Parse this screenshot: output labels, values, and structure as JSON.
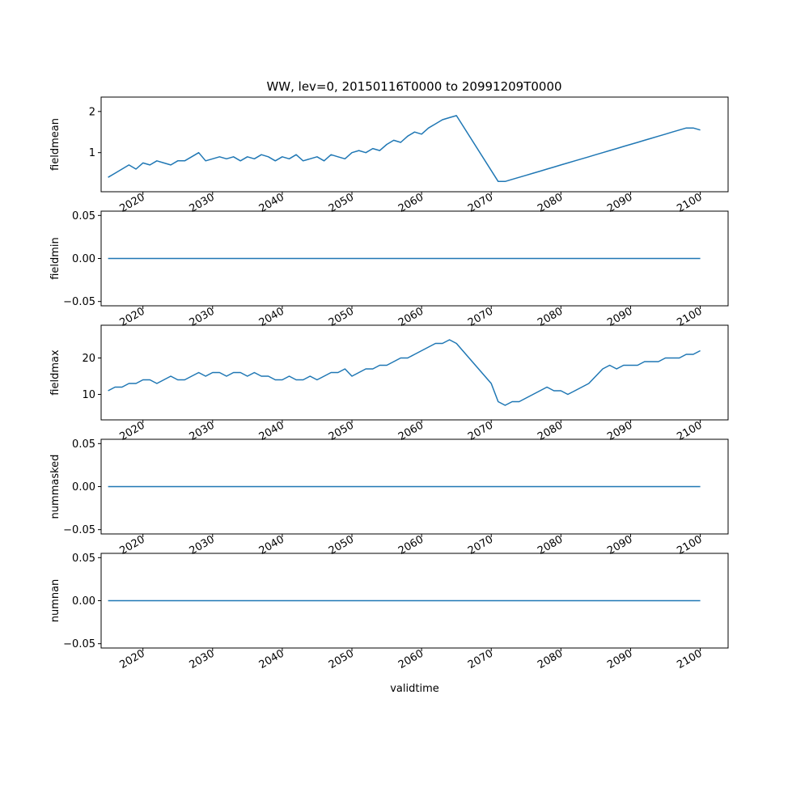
{
  "figure": {
    "title": "WW, lev=0, 20150116T0000 to 20991209T0000"
  },
  "colors": {
    "line": "#1f77b4",
    "axis": "#000000",
    "background": "#ffffff"
  },
  "chart_data": [
    {
      "type": "line",
      "title": "WW, lev=0, 20150116T0000 to 20991209T0000",
      "ylabel": "fieldmean",
      "xlabel": "",
      "xlim": [
        2014.0,
        2104.0
      ],
      "ylim": [
        0.05,
        2.35
      ],
      "yticks": [
        1,
        2
      ],
      "ytick_labels": [
        "1",
        "2"
      ],
      "xticks": [
        2020,
        2030,
        2040,
        2050,
        2060,
        2070,
        2080,
        2090,
        2100
      ],
      "xtick_labels": [
        "2020",
        "2030",
        "2040",
        "2050",
        "2060",
        "2070",
        "2080",
        "2090",
        "2100"
      ],
      "grid": false,
      "series": [
        {
          "name": "fieldmean",
          "x": [
            2015,
            2016,
            2017,
            2018,
            2019,
            2020,
            2021,
            2022,
            2023,
            2024,
            2025,
            2026,
            2027,
            2028,
            2029,
            2030,
            2031,
            2032,
            2033,
            2034,
            2035,
            2036,
            2037,
            2038,
            2039,
            2040,
            2041,
            2042,
            2043,
            2044,
            2045,
            2046,
            2047,
            2048,
            2049,
            2050,
            2051,
            2052,
            2053,
            2054,
            2055,
            2056,
            2057,
            2058,
            2059,
            2060,
            2061,
            2062,
            2063,
            2064,
            2065,
            2071,
            2072,
            2073,
            2074,
            2075,
            2076,
            2077,
            2078,
            2079,
            2080,
            2081,
            2082,
            2083,
            2084,
            2085,
            2086,
            2087,
            2088,
            2089,
            2090,
            2091,
            2092,
            2093,
            2094,
            2095,
            2096,
            2097,
            2098,
            2099,
            2100
          ],
          "values": [
            0.4,
            0.5,
            0.6,
            0.7,
            0.6,
            0.75,
            0.7,
            0.8,
            0.75,
            0.7,
            0.8,
            0.8,
            0.9,
            1.0,
            0.8,
            0.85,
            0.9,
            0.85,
            0.9,
            0.8,
            0.9,
            0.85,
            0.95,
            0.9,
            0.8,
            0.9,
            0.85,
            0.95,
            0.8,
            0.85,
            0.9,
            0.8,
            0.95,
            0.9,
            0.85,
            1.0,
            1.05,
            1.0,
            1.1,
            1.05,
            1.2,
            1.3,
            1.25,
            1.4,
            1.5,
            1.45,
            1.6,
            1.7,
            1.8,
            1.85,
            1.9,
            0.3,
            0.3,
            0.35,
            0.4,
            0.45,
            0.5,
            0.55,
            0.6,
            0.65,
            0.7,
            0.75,
            0.8,
            0.85,
            0.9,
            0.95,
            1.0,
            1.05,
            1.1,
            1.15,
            1.2,
            1.25,
            1.3,
            1.35,
            1.4,
            1.45,
            1.5,
            1.55,
            1.6,
            1.6,
            1.55
          ]
        }
      ]
    },
    {
      "type": "line",
      "title": "",
      "ylabel": "fieldmin",
      "xlabel": "",
      "xlim": [
        2014.0,
        2104.0
      ],
      "ylim": [
        -0.055,
        0.055
      ],
      "yticks": [
        -0.05,
        0.0,
        0.05
      ],
      "ytick_labels": [
        "−0.05",
        "0.00",
        "0.05"
      ],
      "xticks": [
        2020,
        2030,
        2040,
        2050,
        2060,
        2070,
        2080,
        2090,
        2100
      ],
      "xtick_labels": [
        "2020",
        "2030",
        "2040",
        "2050",
        "2060",
        "2070",
        "2080",
        "2090",
        "2100"
      ],
      "grid": false,
      "series": [
        {
          "name": "fieldmin",
          "x": [
            2015,
            2100
          ],
          "values": [
            0,
            0
          ]
        }
      ]
    },
    {
      "type": "line",
      "title": "",
      "ylabel": "fieldmax",
      "xlabel": "",
      "xlim": [
        2014.0,
        2104.0
      ],
      "ylim": [
        3.0,
        29.0
      ],
      "yticks": [
        10,
        20
      ],
      "ytick_labels": [
        "10",
        "20"
      ],
      "xticks": [
        2020,
        2030,
        2040,
        2050,
        2060,
        2070,
        2080,
        2090,
        2100
      ],
      "xtick_labels": [
        "2020",
        "2030",
        "2040",
        "2050",
        "2060",
        "2070",
        "2080",
        "2090",
        "2100"
      ],
      "grid": false,
      "series": [
        {
          "name": "fieldmax",
          "x": [
            2015,
            2016,
            2017,
            2018,
            2019,
            2020,
            2021,
            2022,
            2023,
            2024,
            2025,
            2026,
            2027,
            2028,
            2029,
            2030,
            2031,
            2032,
            2033,
            2034,
            2035,
            2036,
            2037,
            2038,
            2039,
            2040,
            2041,
            2042,
            2043,
            2044,
            2045,
            2046,
            2047,
            2048,
            2049,
            2050,
            2051,
            2052,
            2053,
            2054,
            2055,
            2056,
            2057,
            2058,
            2059,
            2060,
            2061,
            2062,
            2063,
            2064,
            2065,
            2070,
            2071,
            2072,
            2073,
            2074,
            2075,
            2076,
            2077,
            2078,
            2079,
            2080,
            2081,
            2082,
            2083,
            2084,
            2085,
            2086,
            2087,
            2088,
            2089,
            2090,
            2091,
            2092,
            2093,
            2094,
            2095,
            2096,
            2097,
            2098,
            2099,
            2100
          ],
          "values": [
            11,
            12,
            12,
            13,
            13,
            14,
            14,
            13,
            14,
            15,
            14,
            14,
            15,
            16,
            15,
            16,
            16,
            15,
            16,
            16,
            15,
            16,
            15,
            15,
            14,
            14,
            15,
            14,
            14,
            15,
            14,
            15,
            16,
            16,
            17,
            15,
            16,
            17,
            17,
            18,
            18,
            19,
            20,
            20,
            21,
            22,
            23,
            24,
            24,
            25,
            24,
            13,
            8,
            7,
            8,
            8,
            9,
            10,
            11,
            12,
            11,
            11,
            10,
            11,
            12,
            13,
            15,
            17,
            18,
            17,
            18,
            18,
            18,
            19,
            19,
            19,
            20,
            20,
            20,
            21,
            21,
            22
          ]
        }
      ]
    },
    {
      "type": "line",
      "title": "",
      "ylabel": "nummasked",
      "xlabel": "",
      "xlim": [
        2014.0,
        2104.0
      ],
      "ylim": [
        -0.055,
        0.055
      ],
      "yticks": [
        -0.05,
        0.0,
        0.05
      ],
      "ytick_labels": [
        "−0.05",
        "0.00",
        "0.05"
      ],
      "xticks": [
        2020,
        2030,
        2040,
        2050,
        2060,
        2070,
        2080,
        2090,
        2100
      ],
      "xtick_labels": [
        "2020",
        "2030",
        "2040",
        "2050",
        "2060",
        "2070",
        "2080",
        "2090",
        "2100"
      ],
      "grid": false,
      "series": [
        {
          "name": "nummasked",
          "x": [
            2015,
            2100
          ],
          "values": [
            0,
            0
          ]
        }
      ]
    },
    {
      "type": "line",
      "title": "",
      "ylabel": "numnan",
      "xlabel": "validtime",
      "xlim": [
        2014.0,
        2104.0
      ],
      "ylim": [
        -0.055,
        0.055
      ],
      "yticks": [
        -0.05,
        0.0,
        0.05
      ],
      "ytick_labels": [
        "−0.05",
        "0.00",
        "0.05"
      ],
      "xticks": [
        2020,
        2030,
        2040,
        2050,
        2060,
        2070,
        2080,
        2090,
        2100
      ],
      "xtick_labels": [
        "2020",
        "2030",
        "2040",
        "2050",
        "2060",
        "2070",
        "2080",
        "2090",
        "2100"
      ],
      "grid": false,
      "series": [
        {
          "name": "numnan",
          "x": [
            2015,
            2100
          ],
          "values": [
            0,
            0
          ]
        }
      ]
    }
  ]
}
